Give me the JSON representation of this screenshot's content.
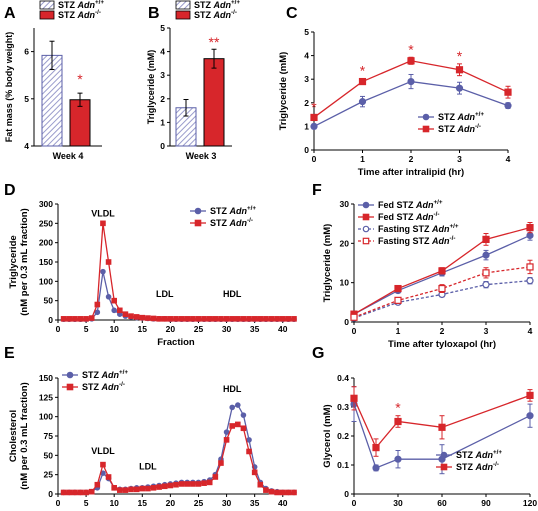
{
  "colors": {
    "wt": "#5b5fa8",
    "ko": "#d7262b",
    "axis": "#000000",
    "hatch": "#9a9ccc"
  },
  "chart_data": [
    {
      "panel": "A",
      "type": "bar",
      "categories": [
        "Week 4"
      ],
      "ylabel": "Fat mass (% body weight)",
      "ylim": [
        4,
        6.5
      ],
      "yticks": [
        4,
        5,
        6
      ],
      "series": [
        {
          "name": "STZ Adn+/+",
          "name_base": "STZ ",
          "name_italic": "Adn",
          "name_sup": "+/+",
          "values": [
            5.92
          ],
          "errors": [
            0.3
          ],
          "pattern": "hatch"
        },
        {
          "name": "STZ Adn-/-",
          "name_base": "STZ ",
          "name_italic": "Adn",
          "name_sup": "-/-",
          "values": [
            4.98
          ],
          "errors": [
            0.14
          ],
          "pattern": "solid"
        }
      ],
      "annotations": [
        "*"
      ]
    },
    {
      "panel": "B",
      "type": "bar",
      "categories": [
        "Week 3"
      ],
      "ylabel": "Triglyceride (mM)",
      "ylim": [
        0,
        5
      ],
      "yticks": [
        0,
        1,
        2,
        3,
        4,
        5
      ],
      "series": [
        {
          "name": "STZ Adn+/+",
          "name_base": "STZ ",
          "name_italic": "Adn",
          "name_sup": "+/+",
          "values": [
            1.62
          ],
          "errors": [
            0.35
          ],
          "pattern": "hatch"
        },
        {
          "name": "STZ Adn-/-",
          "name_base": "STZ ",
          "name_italic": "Adn",
          "name_sup": "-/-",
          "values": [
            3.7
          ],
          "errors": [
            0.4
          ],
          "pattern": "solid"
        }
      ],
      "annotations": [
        "**"
      ]
    },
    {
      "panel": "C",
      "type": "line",
      "x": [
        0,
        1,
        2,
        3,
        4
      ],
      "xlabel": "Time after intralipid (hr)",
      "ylabel": "Triglyceride (mM)",
      "xlim": [
        0,
        4
      ],
      "ylim": [
        0,
        5
      ],
      "yticks": [
        0,
        1,
        2,
        3,
        4,
        5
      ],
      "xticks": [
        0,
        1,
        2,
        3,
        4
      ],
      "series": [
        {
          "name": "STZ Adn+/+",
          "name_base": "STZ ",
          "name_italic": "Adn",
          "name_sup": "+/+",
          "values": [
            1.0,
            2.05,
            2.9,
            2.62,
            1.88
          ],
          "errors": [
            0.1,
            0.22,
            0.3,
            0.25,
            0.12
          ],
          "marker": "circle",
          "color": "#5b5fa8"
        },
        {
          "name": "STZ Adn-/-",
          "name_base": "STZ ",
          "name_italic": "Adn",
          "name_sup": "-/-",
          "values": [
            1.38,
            2.9,
            3.78,
            3.4,
            2.45
          ],
          "errors": [
            0.1,
            0.12,
            0.15,
            0.25,
            0.25
          ],
          "marker": "square",
          "color": "#d7262b"
        }
      ],
      "stars_at_x": [
        0,
        1,
        2,
        3
      ]
    },
    {
      "panel": "D",
      "type": "line",
      "x": [
        1,
        2,
        3,
        4,
        5,
        6,
        7,
        8,
        9,
        10,
        11,
        12,
        13,
        14,
        15,
        16,
        17,
        18,
        19,
        20,
        21,
        22,
        23,
        24,
        25,
        26,
        27,
        28,
        29,
        30,
        31,
        32,
        33,
        34,
        35,
        36,
        37,
        38,
        39,
        40,
        41,
        42
      ],
      "xlabel": "Fraction",
      "ylabel": "Triglyceride",
      "ylabel2": "(nM per 0.3 mL fraction)",
      "xlim": [
        0,
        42
      ],
      "ylim": [
        0,
        300
      ],
      "yticks": [
        0,
        50,
        100,
        150,
        200,
        250,
        300
      ],
      "xticks": [
        0,
        5,
        10,
        15,
        20,
        25,
        30,
        35,
        40
      ],
      "series": [
        {
          "name": "STZ Adn+/+",
          "name_base": "STZ ",
          "name_italic": "Adn",
          "name_sup": "+/+",
          "marker": "circle",
          "color": "#5b5fa8",
          "values": [
            2,
            2,
            2,
            2,
            2,
            3,
            20,
            125,
            60,
            25,
            15,
            10,
            8,
            6,
            5,
            4,
            3,
            3,
            3,
            2,
            2,
            2,
            2,
            2,
            2,
            2,
            2,
            2,
            2,
            2,
            2,
            2,
            2,
            2,
            2,
            2,
            2,
            2,
            2,
            2,
            2,
            2
          ]
        },
        {
          "name": "STZ Adn-/-",
          "name_base": "STZ ",
          "name_italic": "Adn",
          "name_sup": "-/-",
          "marker": "square",
          "color": "#d7262b",
          "values": [
            3,
            3,
            3,
            3,
            3,
            5,
            40,
            250,
            150,
            50,
            25,
            15,
            10,
            8,
            6,
            5,
            4,
            3,
            3,
            3,
            3,
            3,
            3,
            3,
            3,
            3,
            3,
            3,
            3,
            3,
            3,
            3,
            3,
            3,
            3,
            3,
            3,
            3,
            3,
            3,
            3,
            3
          ]
        }
      ],
      "annotations": [
        {
          "text": "VLDL",
          "x": 8,
          "y": 268
        },
        {
          "text": "LDL",
          "x": 19,
          "y": 60
        },
        {
          "text": "HDL",
          "x": 31,
          "y": 60
        }
      ]
    },
    {
      "panel": "E",
      "type": "line",
      "x": [
        1,
        2,
        3,
        4,
        5,
        6,
        7,
        8,
        9,
        10,
        11,
        12,
        13,
        14,
        15,
        16,
        17,
        18,
        19,
        20,
        21,
        22,
        23,
        24,
        25,
        26,
        27,
        28,
        29,
        30,
        31,
        32,
        33,
        34,
        35,
        36,
        37,
        38,
        39,
        40,
        41,
        42
      ],
      "xlabel": "Fraction",
      "ylabel": "Cholesterol",
      "ylabel2": "(nM per 0.3 mL fraction)",
      "xlim": [
        0,
        42
      ],
      "ylim": [
        0,
        150
      ],
      "yticks": [
        0,
        25,
        50,
        75,
        100,
        125,
        150
      ],
      "xticks": [
        0,
        5,
        10,
        15,
        20,
        25,
        30,
        35,
        40
      ],
      "series": [
        {
          "name": "STZ Adn+/+",
          "name_base": "STZ ",
          "name_italic": "Adn",
          "name_sup": "+/+",
          "marker": "circle",
          "color": "#5b5fa8",
          "values": [
            2,
            2,
            2,
            2,
            2,
            3,
            8,
            27,
            20,
            8,
            6,
            6,
            7,
            8,
            8,
            9,
            10,
            11,
            12,
            13,
            14,
            15,
            15,
            15,
            15,
            16,
            18,
            25,
            45,
            80,
            112,
            115,
            102,
            70,
            35,
            15,
            7,
            4,
            3,
            2,
            2,
            2
          ]
        },
        {
          "name": "STZ Adn-/-",
          "name_base": "STZ ",
          "name_italic": "Adn",
          "name_sup": "-/-",
          "marker": "square",
          "color": "#d7262b",
          "values": [
            2,
            2,
            2,
            2,
            2,
            3,
            12,
            38,
            22,
            8,
            5,
            5,
            6,
            6,
            7,
            7,
            8,
            9,
            10,
            11,
            12,
            13,
            13,
            13,
            13,
            14,
            15,
            22,
            40,
            70,
            88,
            90,
            85,
            55,
            28,
            12,
            5,
            3,
            2,
            2,
            2,
            2
          ]
        }
      ],
      "annotations": [
        {
          "text": "VLDL",
          "x": 8,
          "y": 52
        },
        {
          "text": "LDL",
          "x": 16,
          "y": 32
        },
        {
          "text": "HDL",
          "x": 31,
          "y": 132
        }
      ]
    },
    {
      "panel": "F",
      "type": "line",
      "x": [
        0,
        1,
        2,
        3,
        4
      ],
      "xlabel": "Time after tyloxapol (hr)",
      "ylabel": "Triglyceride (mM)",
      "xlim": [
        0,
        4
      ],
      "ylim": [
        0,
        30
      ],
      "yticks": [
        0,
        10,
        20,
        30
      ],
      "xticks": [
        0,
        1,
        2,
        3,
        4
      ],
      "series": [
        {
          "name": "Fed STZ Adn+/+",
          "name_base": "Fed STZ ",
          "name_italic": "Adn",
          "name_sup": "+/+",
          "marker": "circle",
          "filled": true,
          "dashed": false,
          "color": "#5b5fa8",
          "values": [
            2,
            8,
            12.5,
            17,
            22
          ],
          "errors": [
            0.3,
            0.6,
            0.8,
            1.2,
            1.2
          ]
        },
        {
          "name": "Fed STZ Adn-/-",
          "name_base": "Fed STZ ",
          "name_italic": "Adn",
          "name_sup": "-/-",
          "marker": "square",
          "filled": true,
          "dashed": false,
          "color": "#d7262b",
          "values": [
            2,
            8.5,
            13,
            21,
            24
          ],
          "errors": [
            0.3,
            0.6,
            0.8,
            1.5,
            1.3
          ]
        },
        {
          "name": "Fasting STZ Adn+/+",
          "name_base": "Fasting STZ ",
          "name_italic": "Adn",
          "name_sup": "+/+",
          "marker": "circle",
          "filled": false,
          "dashed": true,
          "color": "#5b5fa8",
          "values": [
            1,
            5,
            7,
            9.5,
            10.5
          ],
          "errors": [
            0.2,
            0.5,
            0.6,
            0.8,
            0.8
          ]
        },
        {
          "name": "Fasting STZ Adn-/-",
          "name_base": "Fasting STZ ",
          "name_italic": "Adn",
          "name_sup": "-/-",
          "marker": "square",
          "filled": false,
          "dashed": true,
          "color": "#d7262b",
          "values": [
            1.2,
            5.5,
            8.5,
            12.5,
            14
          ],
          "errors": [
            0.2,
            0.5,
            1.0,
            1.3,
            1.7
          ]
        }
      ]
    },
    {
      "panel": "G",
      "type": "line",
      "x": [
        0,
        15,
        30,
        60,
        120
      ],
      "xlabel": "Time after insulin (min)",
      "ylabel": "Glycerol (mM)",
      "xlim": [
        0,
        120
      ],
      "ylim": [
        0,
        0.4
      ],
      "yticks": [
        0,
        0.1,
        0.2,
        0.3,
        0.4
      ],
      "xticks": [
        0,
        30,
        60,
        90,
        120
      ],
      "series": [
        {
          "name": "STZ Adn+/+",
          "name_base": "STZ ",
          "name_italic": "Adn",
          "name_sup": "+/+",
          "marker": "circle",
          "color": "#5b5fa8",
          "values": [
            0.31,
            0.09,
            0.12,
            0.12,
            0.27
          ],
          "errors": [
            0.06,
            0.01,
            0.03,
            0.05,
            0.04
          ]
        },
        {
          "name": "STZ Adn-/-",
          "name_base": "STZ ",
          "name_italic": "Adn",
          "name_sup": "-/-",
          "marker": "square",
          "color": "#d7262b",
          "values": [
            0.33,
            0.16,
            0.25,
            0.23,
            0.34
          ],
          "errors": [
            0.04,
            0.03,
            0.02,
            0.04,
            0.02
          ]
        }
      ],
      "stars_at_x": [
        30
      ]
    }
  ],
  "panel_letters": [
    "A",
    "B",
    "C",
    "D",
    "E",
    "F",
    "G"
  ]
}
